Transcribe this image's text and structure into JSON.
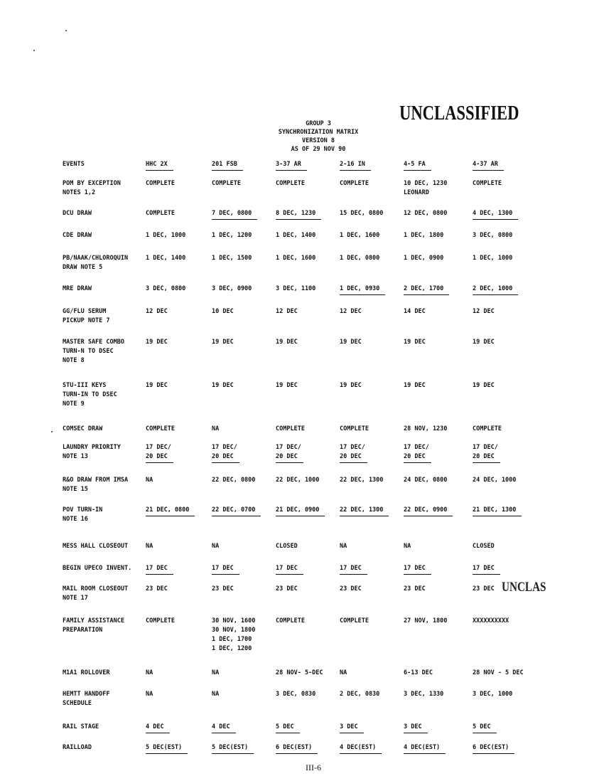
{
  "header": {
    "lines": [
      "GROUP 3",
      "SYNCHRONIZATION MATRIX",
      "VERSION 8",
      "AS OF 29 NOV 90"
    ],
    "classification": "UNCLASSIFIED",
    "partial_stamp": "UNCLAS"
  },
  "columns": [
    "EVENTS",
    "HHC 2X",
    "201 FSB",
    "3-37 AR",
    "2-16 IN",
    "4-5 FA",
    "4-37 AR"
  ],
  "rows": [
    {
      "label": [
        "POM BY EXCEPTION",
        "NOTES 1,2"
      ],
      "cells": [
        [
          "COMPLETE"
        ],
        [
          "COMPLETE"
        ],
        [
          "COMPLETE"
        ],
        [
          "COMPLETE"
        ],
        [
          "10 DEC, 1230",
          "LEONARD"
        ],
        [
          "COMPLETE"
        ]
      ],
      "underline": []
    },
    {
      "label": [
        "DCU DRAW"
      ],
      "cells": [
        [
          "COMPLETE"
        ],
        [
          "7 DEC, 0800"
        ],
        [
          "8 DEC, 1230"
        ],
        [
          "15 DEC, 0800"
        ],
        [
          "12 DEC, 0800"
        ],
        [
          "4 DEC, 1300"
        ]
      ],
      "underline": [
        1,
        2,
        5
      ]
    },
    {
      "label": [
        "CDE DRAW"
      ],
      "cells": [
        [
          "1 DEC, 1000"
        ],
        [
          "1 DEC, 1200"
        ],
        [
          "1 DEC, 1400"
        ],
        [
          "1 DEC, 1600"
        ],
        [
          "1 DEC, 1800"
        ],
        [
          "3 DEC, 0800"
        ]
      ],
      "underline": []
    },
    {
      "label": [
        "PB/NAAK/CHLOROQUIN",
        "DRAW NOTE 5"
      ],
      "cells": [
        [
          "1 DEC, 1400"
        ],
        [
          "1 DEC, 1500"
        ],
        [
          "1 DEC, 1600"
        ],
        [
          "1 DEC, 0800"
        ],
        [
          "1 DEC, 0900"
        ],
        [
          "1 DEC, 1000"
        ]
      ],
      "underline": []
    },
    {
      "label": [
        "MRE DRAW"
      ],
      "cells": [
        [
          "3 DEC, 0800"
        ],
        [
          "3 DEC, 0900"
        ],
        [
          "3 DEC, 1100"
        ],
        [
          "1 DEC, 0930"
        ],
        [
          "2 DEC, 1700"
        ],
        [
          "2 DEC, 1000"
        ]
      ],
      "underline": [
        3,
        4,
        5
      ]
    },
    {
      "label": [
        "GG/FLU SERUM",
        "PICKUP NOTE 7"
      ],
      "cells": [
        [
          "12 DEC"
        ],
        [
          "10 DEC"
        ],
        [
          "12 DEC"
        ],
        [
          "12 DEC"
        ],
        [
          "14 DEC"
        ],
        [
          "12 DEC"
        ]
      ],
      "underline": []
    },
    {
      "label": [
        "MASTER SAFE COMBO",
        "TURN-N TO DSEC",
        "NOTE 8"
      ],
      "cells": [
        [
          "19 DEC"
        ],
        [
          "19 DEC"
        ],
        [
          "19 DEC"
        ],
        [
          "19 DEC"
        ],
        [
          "19 DEC"
        ],
        [
          "19 DEC"
        ]
      ],
      "underline": []
    },
    {
      "label": [
        "STU-III KEYS",
        "TURN-IN TO DSEC",
        "NOTE 9"
      ],
      "cells": [
        [
          "19 DEC"
        ],
        [
          "19 DEC"
        ],
        [
          "19 DEC"
        ],
        [
          "19 DEC"
        ],
        [
          "19 DEC"
        ],
        [
          "19 DEC"
        ]
      ],
      "underline": []
    },
    {
      "label": [
        "COMSEC DRAW"
      ],
      "cells": [
        [
          "COMPLETE"
        ],
        [
          "NA"
        ],
        [
          "COMPLETE"
        ],
        [
          "COMPLETE"
        ],
        [
          "28 NOV, 1230"
        ],
        [
          "COMPLETE"
        ]
      ],
      "underline": []
    },
    {
      "label": [
        "LAUNDRY PRIORITY",
        "NOTE 13"
      ],
      "cells": [
        [
          "17 DEC/",
          "20 DEC"
        ],
        [
          "17 DEC/",
          "20 DEC"
        ],
        [
          "17 DEC/",
          "20 DEC"
        ],
        [
          "17 DEC/",
          "20 DEC"
        ],
        [
          "17 DEC/",
          "20 DEC"
        ],
        [
          "17 DEC/",
          "20 DEC"
        ]
      ],
      "underline": [
        0,
        1,
        2,
        3,
        4,
        5
      ]
    },
    {
      "label": [
        "R&O DRAW FROM IMSA",
        "NOTE 15"
      ],
      "cells": [
        [
          "NA"
        ],
        [
          "22 DEC, 0800"
        ],
        [
          "22 DEC, 1000"
        ],
        [
          "22 DEC, 1300"
        ],
        [
          "24 DEC, 0800"
        ],
        [
          "24 DEC, 1000"
        ]
      ],
      "underline": []
    },
    {
      "label": [
        "POV TURN-IN",
        "NOTE 16"
      ],
      "cells": [
        [
          "21 DEC, 0800"
        ],
        [
          "22 DEC, 0700"
        ],
        [
          "21 DEC, 0900"
        ],
        [
          "22 DEC, 1300"
        ],
        [
          "22 DEC, 0900"
        ],
        [
          "21 DEC, 1300"
        ]
      ],
      "underline": [
        0,
        1,
        2,
        3,
        4,
        5
      ]
    },
    {
      "label": [
        "MESS HALL CLOSEOUT"
      ],
      "cells": [
        [
          "NA"
        ],
        [
          "NA"
        ],
        [
          "CLOSED"
        ],
        [
          "NA"
        ],
        [
          "NA"
        ],
        [
          "CLOSED"
        ]
      ],
      "underline": []
    },
    {
      "label": [
        "BEGIN UPECO INVENT."
      ],
      "cells": [
        [
          "17 DEC"
        ],
        [
          "17 DEC"
        ],
        [
          "17 DEC"
        ],
        [
          "17 DEC"
        ],
        [
          "17 DEC"
        ],
        [
          "17 DEC"
        ]
      ],
      "underline": [
        0,
        1,
        2,
        3,
        4,
        5
      ]
    },
    {
      "label": [
        "MAIL ROOM CLOSEOUT",
        "NOTE 17"
      ],
      "cells": [
        [
          "23 DEC"
        ],
        [
          "23 DEC"
        ],
        [
          "23 DEC"
        ],
        [
          "23 DEC"
        ],
        [
          "23 DEC"
        ],
        [
          "23 DEC"
        ]
      ],
      "underline": []
    },
    {
      "label": [
        "FAMILY ASSISTANCE",
        "PREPARATION"
      ],
      "cells": [
        [
          "COMPLETE"
        ],
        [
          "30 NOV, 1600",
          "30 NOV, 1800",
          "1 DEC, 1700",
          "1 DEC, 1200"
        ],
        [
          "COMPLETE"
        ],
        [
          "COMPLETE"
        ],
        [
          "27 NOV, 1800"
        ],
        [
          "XXXXXXXXXX"
        ]
      ],
      "underline": []
    },
    {
      "label": [
        "M1A1 ROLLOVER"
      ],
      "cells": [
        [
          "NA"
        ],
        [
          "NA"
        ],
        [
          "28 NOV- 5-DEC"
        ],
        [
          "NA"
        ],
        [
          "6-13 DEC"
        ],
        [
          "28 NOV - 5 DEC"
        ]
      ],
      "underline": []
    },
    {
      "label": [
        "HEMTT HANDOFF",
        "SCHEDULE"
      ],
      "cells": [
        [
          "NA"
        ],
        [
          "NA"
        ],
        [
          "3 DEC, 0830"
        ],
        [
          "2 DEC, 0830"
        ],
        [
          "3 DEC, 1330"
        ],
        [
          "3 DEC, 1000"
        ]
      ],
      "underline": []
    },
    {
      "label": [
        "RAIL STAGE"
      ],
      "cells": [
        [
          "4 DEC"
        ],
        [
          "4 DEC"
        ],
        [
          "5 DEC"
        ],
        [
          "3 DEC"
        ],
        [
          "3 DEC"
        ],
        [
          "5 DEC"
        ]
      ],
      "underline": [
        0,
        1,
        2,
        3,
        4,
        5
      ]
    },
    {
      "label": [
        "RAILLOAD"
      ],
      "cells": [
        [
          "5 DEC(EST)"
        ],
        [
          "5 DEC(EST)"
        ],
        [
          "6 DEC(EST)"
        ],
        [
          "4 DEC(EST)"
        ],
        [
          "4 DEC(EST)"
        ],
        [
          "6 DEC(EST)"
        ]
      ],
      "underline": [
        0,
        1,
        2,
        3,
        4,
        5
      ]
    }
  ],
  "page_number": "III-6"
}
